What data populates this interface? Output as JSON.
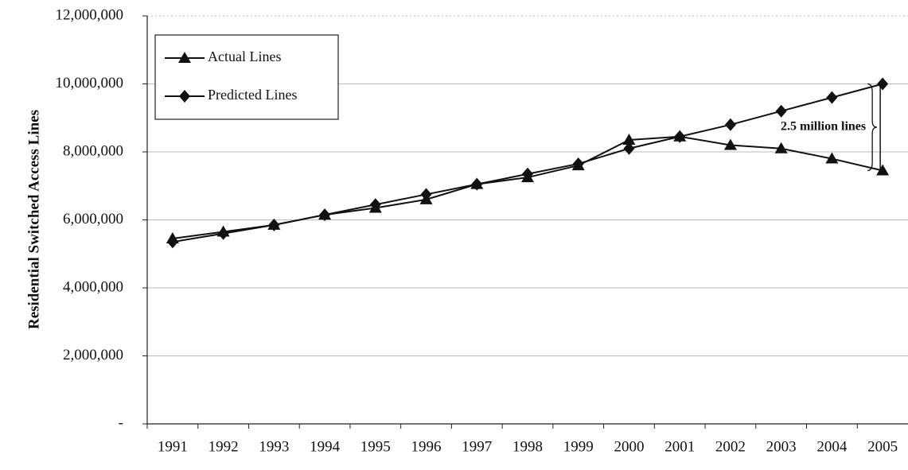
{
  "chart_data": {
    "type": "line",
    "y_label": "Residential Switched Access Lines",
    "categories": [
      "1991",
      "1992",
      "1993",
      "1994",
      "1995",
      "1996",
      "1997",
      "1998",
      "1999",
      "2000",
      "2001",
      "2002",
      "2003",
      "2004",
      "2005"
    ],
    "series": [
      {
        "name": "Actual Lines",
        "color": "#111111",
        "marker": "triangle",
        "values": [
          5450000,
          5650000,
          5850000,
          6150000,
          6350000,
          6600000,
          7050000,
          7250000,
          7600000,
          8350000,
          8450000,
          8200000,
          8100000,
          7800000,
          7450000
        ]
      },
      {
        "name": "Predicted Lines",
        "color": "#111111",
        "marker": "diamond",
        "values": [
          5350000,
          5600000,
          5850000,
          6150000,
          6450000,
          6750000,
          7050000,
          7350000,
          7650000,
          8100000,
          8450000,
          8800000,
          9200000,
          9600000,
          10000000
        ]
      }
    ],
    "annotation": "2.5 million lines",
    "ylim": [
      0,
      12000000
    ],
    "yticks": [
      {
        "value": 0,
        "label": "-"
      },
      {
        "value": 2000000,
        "label": "2,000,000"
      },
      {
        "value": 4000000,
        "label": "4,000,000"
      },
      {
        "value": 6000000,
        "label": "6,000,000"
      },
      {
        "value": 8000000,
        "label": "8,000,000"
      },
      {
        "value": 10000000,
        "label": "10,000,000"
      },
      {
        "value": 12000000,
        "label": "12,000,000"
      }
    ],
    "grid": true,
    "legend": "top-left"
  }
}
